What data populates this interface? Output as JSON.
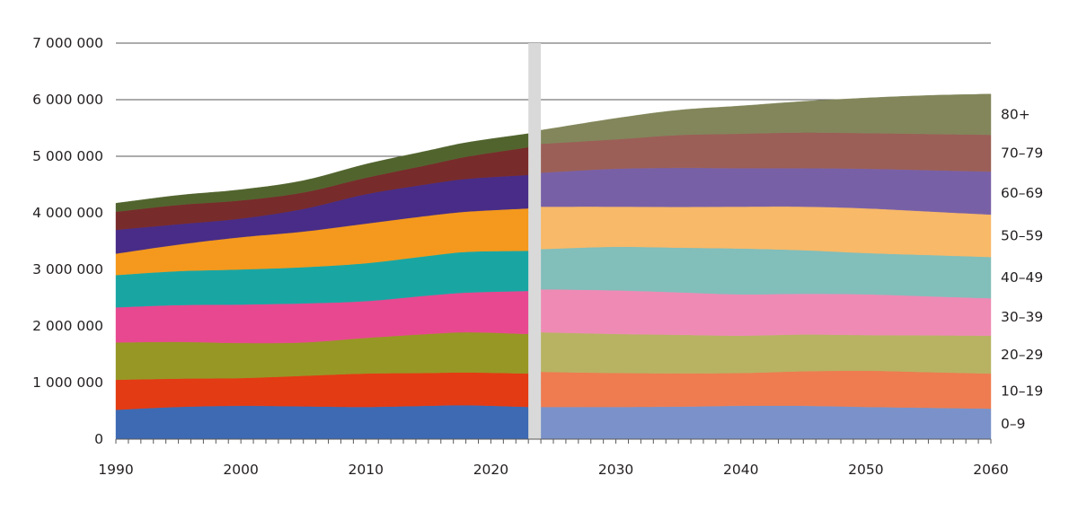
{
  "chart_data": {
    "type": "area",
    "stacked": true,
    "title": "",
    "xlabel": "",
    "ylabel": "",
    "xlim": [
      1990,
      2060
    ],
    "ylim": [
      0,
      7000000
    ],
    "grid": "horizontal",
    "y_ticks": [
      0,
      1000000,
      2000000,
      3000000,
      4000000,
      5000000,
      6000000,
      7000000
    ],
    "y_tick_labels": [
      "0",
      "1 000 000",
      "2 000 000",
      "3 000 000",
      "4 000 000",
      "5 000 000",
      "6 000 000",
      "7 000 000"
    ],
    "x_ticks": [
      1990,
      2000,
      2010,
      2020,
      2030,
      2040,
      2050,
      2060
    ],
    "x_tick_labels": [
      "1990",
      "2000",
      "2010",
      "2020",
      "2030",
      "2040",
      "2050",
      "2060"
    ],
    "legend_placement": "right (labels aligned to series at 2060)",
    "divider": {
      "between": [
        2023,
        2024
      ],
      "meaning": "historical vs. projection",
      "color": "#d9d9d9"
    },
    "historical": {
      "x": [
        1990,
        1995,
        2000,
        2005,
        2010,
        2015,
        2018,
        2023
      ],
      "series": [
        {
          "name": "0–9",
          "color": "#3d6ab3",
          "values": [
            520000,
            570000,
            590000,
            580000,
            570000,
            590000,
            600000,
            570000
          ]
        },
        {
          "name": "10–19",
          "color": "#e33b13",
          "values": [
            530000,
            500000,
            490000,
            540000,
            590000,
            580000,
            580000,
            590000
          ]
        },
        {
          "name": "20–29",
          "color": "#979725",
          "values": [
            660000,
            650000,
            620000,
            590000,
            630000,
            690000,
            710000,
            700000
          ]
        },
        {
          "name": "30–39",
          "color": "#e84890",
          "values": [
            620000,
            650000,
            680000,
            690000,
            650000,
            680000,
            700000,
            760000
          ]
        },
        {
          "name": "40–49",
          "color": "#19a6a3",
          "values": [
            570000,
            600000,
            620000,
            640000,
            670000,
            700000,
            720000,
            710000
          ]
        },
        {
          "name": "50–59",
          "color": "#f4991d",
          "values": [
            380000,
            470000,
            570000,
            630000,
            700000,
            710000,
            710000,
            750000
          ]
        },
        {
          "name": "60–69",
          "color": "#482c87",
          "values": [
            420000,
            360000,
            330000,
            400000,
            520000,
            560000,
            580000,
            590000
          ]
        },
        {
          "name": "70–79",
          "color": "#782b2b",
          "values": [
            320000,
            340000,
            320000,
            290000,
            290000,
            340000,
            390000,
            490000
          ]
        },
        {
          "name": "80+",
          "color": "#52642e",
          "values": [
            150000,
            170000,
            190000,
            210000,
            240000,
            250000,
            250000,
            240000
          ]
        }
      ]
    },
    "projection": {
      "x": [
        2024,
        2030,
        2035,
        2040,
        2045,
        2050,
        2055,
        2060
      ],
      "series": [
        {
          "name": "0–9",
          "color": "#7a92c9",
          "values": [
            570000,
            570000,
            575000,
            590000,
            590000,
            570000,
            555000,
            540000
          ]
        },
        {
          "name": "10–19",
          "color": "#ee7c50",
          "values": [
            620000,
            600000,
            590000,
            580000,
            610000,
            640000,
            630000,
            620000
          ]
        },
        {
          "name": "20–29",
          "color": "#b8b363",
          "values": [
            700000,
            690000,
            680000,
            660000,
            650000,
            630000,
            650000,
            670000
          ]
        },
        {
          "name": "30–39",
          "color": "#ef8ab5",
          "values": [
            760000,
            770000,
            750000,
            730000,
            720000,
            720000,
            690000,
            660000
          ]
        },
        {
          "name": "40–49",
          "color": "#82beba",
          "values": [
            710000,
            770000,
            790000,
            810000,
            770000,
            730000,
            730000,
            730000
          ]
        },
        {
          "name": "50–59",
          "color": "#f8b968",
          "values": [
            750000,
            710000,
            720000,
            740000,
            770000,
            790000,
            770000,
            750000
          ]
        },
        {
          "name": "60–69",
          "color": "#7860a7",
          "values": [
            600000,
            670000,
            690000,
            680000,
            680000,
            700000,
            730000,
            760000
          ]
        },
        {
          "name": "70–79",
          "color": "#9b5f57",
          "values": [
            510000,
            520000,
            580000,
            610000,
            630000,
            630000,
            640000,
            650000
          ]
        },
        {
          "name": "80+",
          "color": "#82865a",
          "values": [
            240000,
            370000,
            440000,
            490000,
            550000,
            620000,
            680000,
            720000
          ]
        }
      ]
    }
  }
}
